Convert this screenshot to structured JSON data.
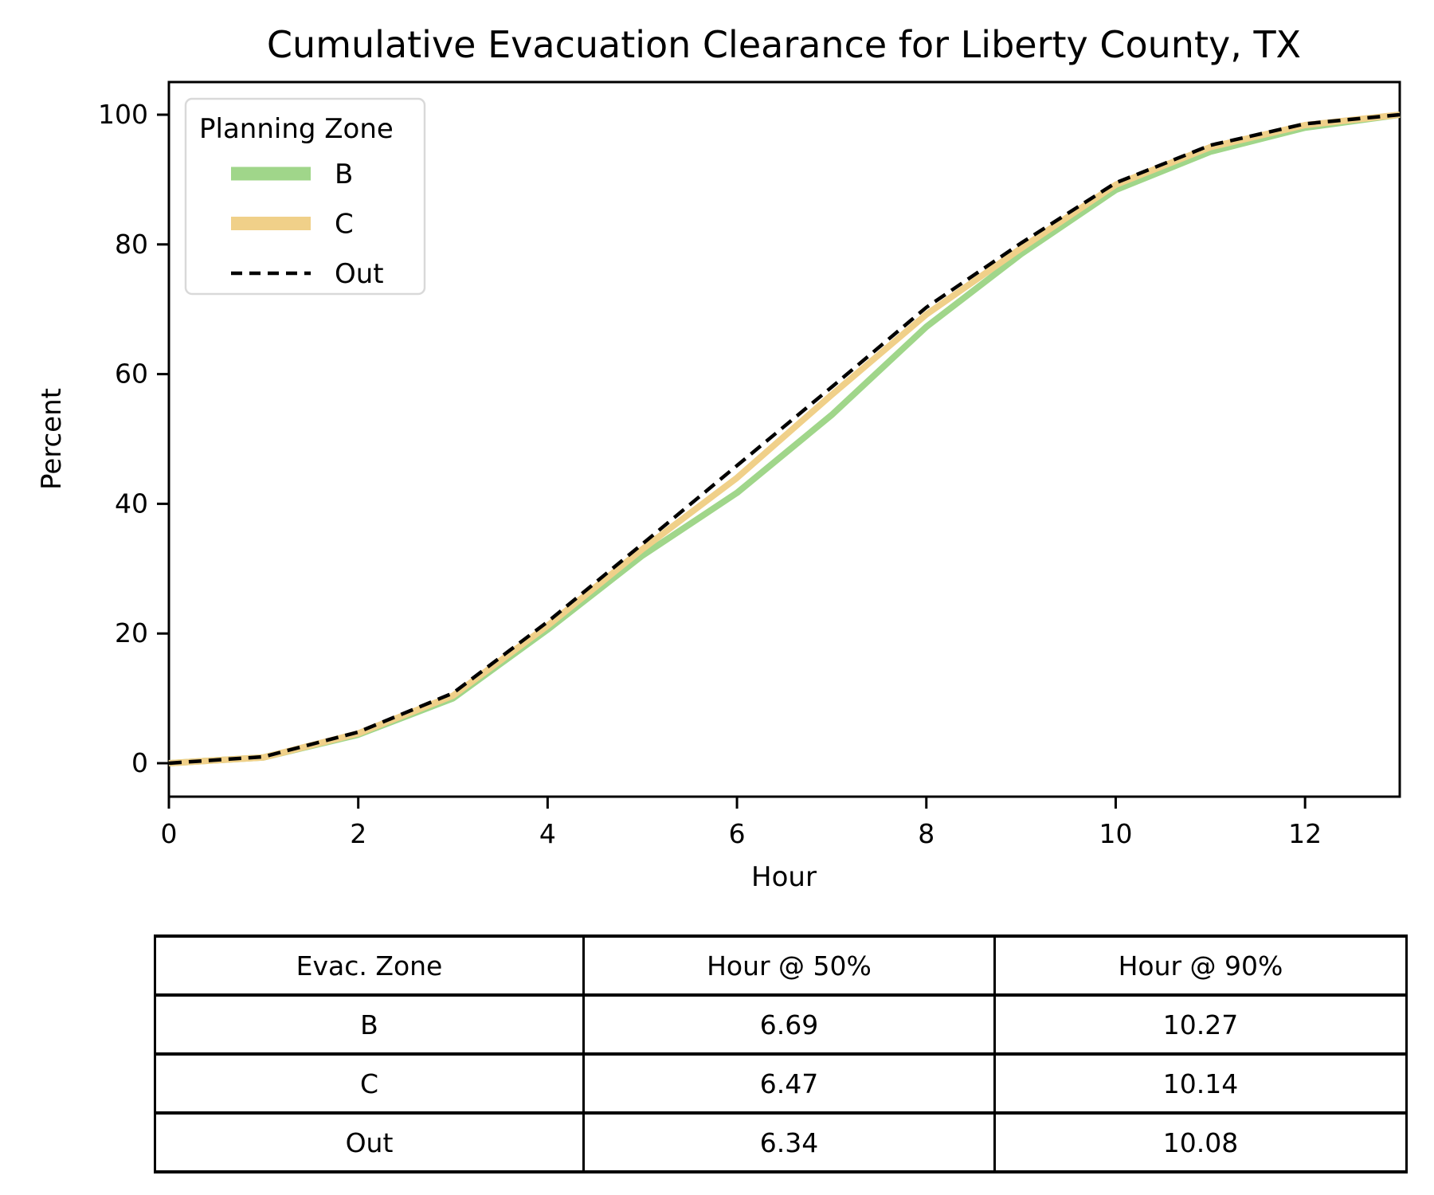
{
  "title": "Cumulative Evacuation Clearance for Liberty County, TX",
  "chart_data": {
    "type": "line",
    "title": "Cumulative Evacuation Clearance for Liberty County, TX",
    "xlabel": "Hour",
    "ylabel": "Percent",
    "xlim": [
      0,
      13
    ],
    "ylim": [
      -5,
      105
    ],
    "xticks": [
      0,
      2,
      4,
      6,
      8,
      10,
      12
    ],
    "yticks": [
      0,
      20,
      40,
      60,
      80,
      100
    ],
    "grid": false,
    "legend_title": "Planning Zone",
    "legend_position": "upper left",
    "x": [
      0,
      1,
      2,
      3,
      4,
      5,
      6,
      7,
      8,
      9,
      10,
      11,
      12,
      13
    ],
    "series": [
      {
        "name": "B",
        "color": "#a0d68a",
        "style": "solid",
        "values": [
          0,
          0.9,
          4.4,
          10.0,
          20.6,
          32.0,
          41.7,
          53.7,
          67.3,
          78.5,
          88.4,
          94.3,
          98.0,
          100
        ]
      },
      {
        "name": "C",
        "color": "#f0d089",
        "style": "solid",
        "values": [
          0,
          0.9,
          4.6,
          10.4,
          21.2,
          33.0,
          44.0,
          56.8,
          69.2,
          79.4,
          89.2,
          95.0,
          98.4,
          100
        ]
      },
      {
        "name": "Out",
        "color": "#000000",
        "style": "dashed",
        "values": [
          0,
          1.0,
          4.8,
          10.8,
          21.8,
          33.8,
          45.9,
          58.0,
          70.3,
          80.2,
          89.5,
          95.3,
          98.6,
          100
        ]
      }
    ]
  },
  "table": {
    "headers": [
      "Evac. Zone",
      "Hour @ 50%",
      "Hour @ 90%"
    ],
    "rows": [
      [
        "B",
        "6.69",
        "10.27"
      ],
      [
        "C",
        "6.47",
        "10.14"
      ],
      [
        "Out",
        "6.34",
        "10.08"
      ]
    ]
  },
  "colors": {
    "frame": "#000000",
    "legend_border": "#d9d9d9",
    "background": "#ffffff"
  }
}
